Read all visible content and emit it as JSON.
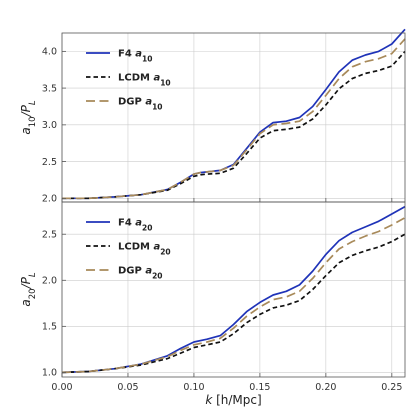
{
  "chart_data": [
    {
      "type": "line",
      "panel": "top",
      "ylabel": {
        "main": "a",
        "sub": "10",
        "rest": "/P",
        "rest_sub": "L"
      },
      "xlim": [
        0.0,
        0.26
      ],
      "ylim": [
        1.95,
        4.25
      ],
      "yticks": [
        "2.0",
        "2.5",
        "3.0",
        "3.5",
        "4.0"
      ],
      "grid": true,
      "legend_position": "top-left",
      "series": [
        {
          "name": "F4 a10",
          "label_main": "F4 ",
          "label_sub": "10",
          "color": "#1f33b8",
          "dash": "solid",
          "x": [
            0.0,
            0.02,
            0.04,
            0.06,
            0.08,
            0.09,
            0.1,
            0.105,
            0.11,
            0.12,
            0.13,
            0.14,
            0.15,
            0.16,
            0.17,
            0.18,
            0.19,
            0.2,
            0.21,
            0.22,
            0.23,
            0.24,
            0.25,
            0.26
          ],
          "y": [
            2.0,
            2.0,
            2.02,
            2.05,
            2.12,
            2.22,
            2.33,
            2.35,
            2.36,
            2.38,
            2.46,
            2.68,
            2.9,
            3.03,
            3.05,
            3.1,
            3.25,
            3.48,
            3.72,
            3.88,
            3.95,
            4.0,
            4.1,
            4.3
          ]
        },
        {
          "name": "LCDM a10",
          "label_main": "LCDM ",
          "label_sub": "10",
          "color": "#111111",
          "dash": "short",
          "x": [
            0.0,
            0.02,
            0.04,
            0.06,
            0.08,
            0.09,
            0.1,
            0.105,
            0.11,
            0.12,
            0.13,
            0.14,
            0.15,
            0.16,
            0.17,
            0.18,
            0.19,
            0.2,
            0.21,
            0.22,
            0.23,
            0.24,
            0.25,
            0.26
          ],
          "y": [
            2.0,
            2.0,
            2.02,
            2.05,
            2.11,
            2.2,
            2.3,
            2.32,
            2.33,
            2.34,
            2.41,
            2.61,
            2.82,
            2.92,
            2.94,
            2.97,
            3.08,
            3.27,
            3.49,
            3.63,
            3.7,
            3.74,
            3.8,
            4.0
          ]
        },
        {
          "name": "DGP a10",
          "label_main": "DGP ",
          "label_sub": "10",
          "color": "#a88a5a",
          "dash": "long",
          "x": [
            0.0,
            0.02,
            0.04,
            0.06,
            0.08,
            0.09,
            0.1,
            0.105,
            0.11,
            0.12,
            0.13,
            0.14,
            0.15,
            0.16,
            0.17,
            0.18,
            0.19,
            0.2,
            0.21,
            0.22,
            0.23,
            0.24,
            0.25,
            0.26
          ],
          "y": [
            2.0,
            2.0,
            2.02,
            2.05,
            2.12,
            2.22,
            2.33,
            2.35,
            2.36,
            2.38,
            2.45,
            2.66,
            2.88,
            3.0,
            3.02,
            3.05,
            3.18,
            3.4,
            3.63,
            3.79,
            3.86,
            3.9,
            3.97,
            4.17
          ]
        }
      ]
    },
    {
      "type": "line",
      "panel": "bottom",
      "xlabel": {
        "k": "k",
        "unit": " [h/Mpc]"
      },
      "ylabel": {
        "main": "a",
        "sub": "20",
        "rest": "/P",
        "rest_sub": "L"
      },
      "xlim": [
        0.0,
        0.26
      ],
      "ylim": [
        0.95,
        2.85
      ],
      "xticks": [
        "0.00",
        "0.05",
        "0.10",
        "0.15",
        "0.20",
        "0.25"
      ],
      "yticks": [
        "1.0",
        "1.5",
        "2.0",
        "2.5"
      ],
      "grid": true,
      "legend_position": "top-left",
      "series": [
        {
          "name": "F4 a20",
          "label_main": "F4 ",
          "label_sub": "20",
          "color": "#1f33b8",
          "dash": "solid",
          "x": [
            0.0,
            0.02,
            0.04,
            0.06,
            0.08,
            0.09,
            0.1,
            0.11,
            0.12,
            0.13,
            0.14,
            0.15,
            0.16,
            0.17,
            0.18,
            0.19,
            0.2,
            0.21,
            0.22,
            0.23,
            0.24,
            0.25,
            0.26
          ],
          "y": [
            1.0,
            1.01,
            1.04,
            1.09,
            1.18,
            1.26,
            1.33,
            1.36,
            1.4,
            1.52,
            1.66,
            1.76,
            1.84,
            1.88,
            1.95,
            2.1,
            2.28,
            2.43,
            2.52,
            2.58,
            2.64,
            2.72,
            2.8
          ]
        },
        {
          "name": "LCDM a20",
          "label_main": "LCDM ",
          "label_sub": "20",
          "color": "#111111",
          "dash": "short",
          "x": [
            0.0,
            0.02,
            0.04,
            0.06,
            0.08,
            0.09,
            0.1,
            0.11,
            0.12,
            0.13,
            0.14,
            0.15,
            0.16,
            0.17,
            0.18,
            0.19,
            0.2,
            0.21,
            0.22,
            0.23,
            0.24,
            0.25,
            0.26
          ],
          "y": [
            1.0,
            1.01,
            1.04,
            1.08,
            1.15,
            1.21,
            1.27,
            1.3,
            1.33,
            1.42,
            1.54,
            1.63,
            1.7,
            1.73,
            1.78,
            1.9,
            2.05,
            2.19,
            2.27,
            2.32,
            2.36,
            2.42,
            2.5
          ]
        },
        {
          "name": "DGP a20",
          "label_main": "DGP ",
          "label_sub": "20",
          "color": "#a88a5a",
          "dash": "long",
          "x": [
            0.0,
            0.02,
            0.04,
            0.06,
            0.08,
            0.09,
            0.1,
            0.11,
            0.12,
            0.13,
            0.14,
            0.15,
            0.16,
            0.17,
            0.18,
            0.19,
            0.2,
            0.21,
            0.22,
            0.23,
            0.24,
            0.25,
            0.26
          ],
          "y": [
            1.0,
            1.01,
            1.04,
            1.09,
            1.17,
            1.24,
            1.3,
            1.33,
            1.37,
            1.48,
            1.61,
            1.71,
            1.79,
            1.82,
            1.88,
            2.02,
            2.19,
            2.34,
            2.42,
            2.48,
            2.53,
            2.6,
            2.68
          ]
        }
      ]
    }
  ]
}
